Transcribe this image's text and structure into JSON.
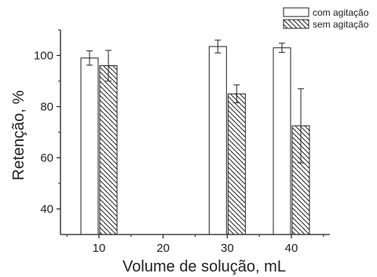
{
  "chart_data": {
    "type": "bar",
    "title": "",
    "xlabel": "Volume de solução, mL",
    "ylabel": "Retenção, %",
    "xlim": [
      4,
      46
    ],
    "ylim": [
      30,
      110
    ],
    "x_ticks": [
      10,
      20,
      30,
      40
    ],
    "y_ticks": [
      40,
      60,
      80,
      100
    ],
    "legend_position": "top-right",
    "grid": false,
    "series": [
      {
        "name": "com agitação",
        "pattern": "open",
        "color": "#ffffff",
        "points": [
          {
            "x": 10,
            "y": 99,
            "err": 2.8
          },
          {
            "x": 30,
            "y": 103.5,
            "err": 2.5
          },
          {
            "x": 40,
            "y": 103,
            "err": 1.8
          }
        ]
      },
      {
        "name": "sem agitação",
        "pattern": "diagonal-hatch",
        "color": "#222222",
        "points": [
          {
            "x": 10,
            "y": 96,
            "err": 6
          },
          {
            "x": 30,
            "y": 85,
            "err": 3.5
          },
          {
            "x": 40,
            "y": 72.5,
            "err": 14.5
          }
        ]
      }
    ]
  }
}
